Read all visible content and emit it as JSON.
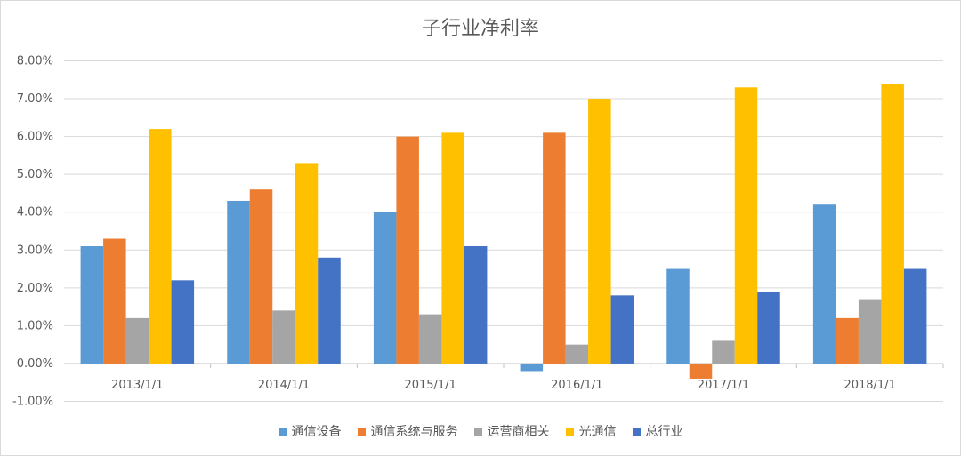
{
  "chart_data": {
    "type": "bar",
    "title": "子行业净利率",
    "categories": [
      "2013/1/1",
      "2014/1/1",
      "2015/1/1",
      "2016/1/1",
      "2017/1/1",
      "2018/1/1"
    ],
    "yticks": [
      "8.00%",
      "7.00%",
      "6.00%",
      "5.00%",
      "4.00%",
      "3.00%",
      "2.00%",
      "1.00%",
      "0.00%",
      "-1.00%"
    ],
    "ylim": [
      -1,
      8
    ],
    "grid": true,
    "legend_position": "bottom",
    "series": [
      {
        "name": "通信设备",
        "color": "#5b9bd5",
        "values": [
          3.1,
          4.3,
          4.0,
          -0.2,
          2.5,
          4.2
        ]
      },
      {
        "name": "通信系统与服务",
        "color": "#ed7d31",
        "values": [
          3.3,
          4.6,
          6.0,
          6.1,
          -0.4,
          1.2
        ]
      },
      {
        "name": "运营商相关",
        "color": "#a5a5a5",
        "values": [
          1.2,
          1.4,
          1.3,
          0.5,
          0.6,
          1.7
        ]
      },
      {
        "name": "光通信",
        "color": "#ffc000",
        "values": [
          6.2,
          5.3,
          6.1,
          7.0,
          7.3,
          7.4
        ]
      },
      {
        "name": "总行业",
        "color": "#4472c4",
        "values": [
          2.2,
          2.8,
          3.1,
          1.8,
          1.9,
          2.5
        ]
      }
    ]
  }
}
